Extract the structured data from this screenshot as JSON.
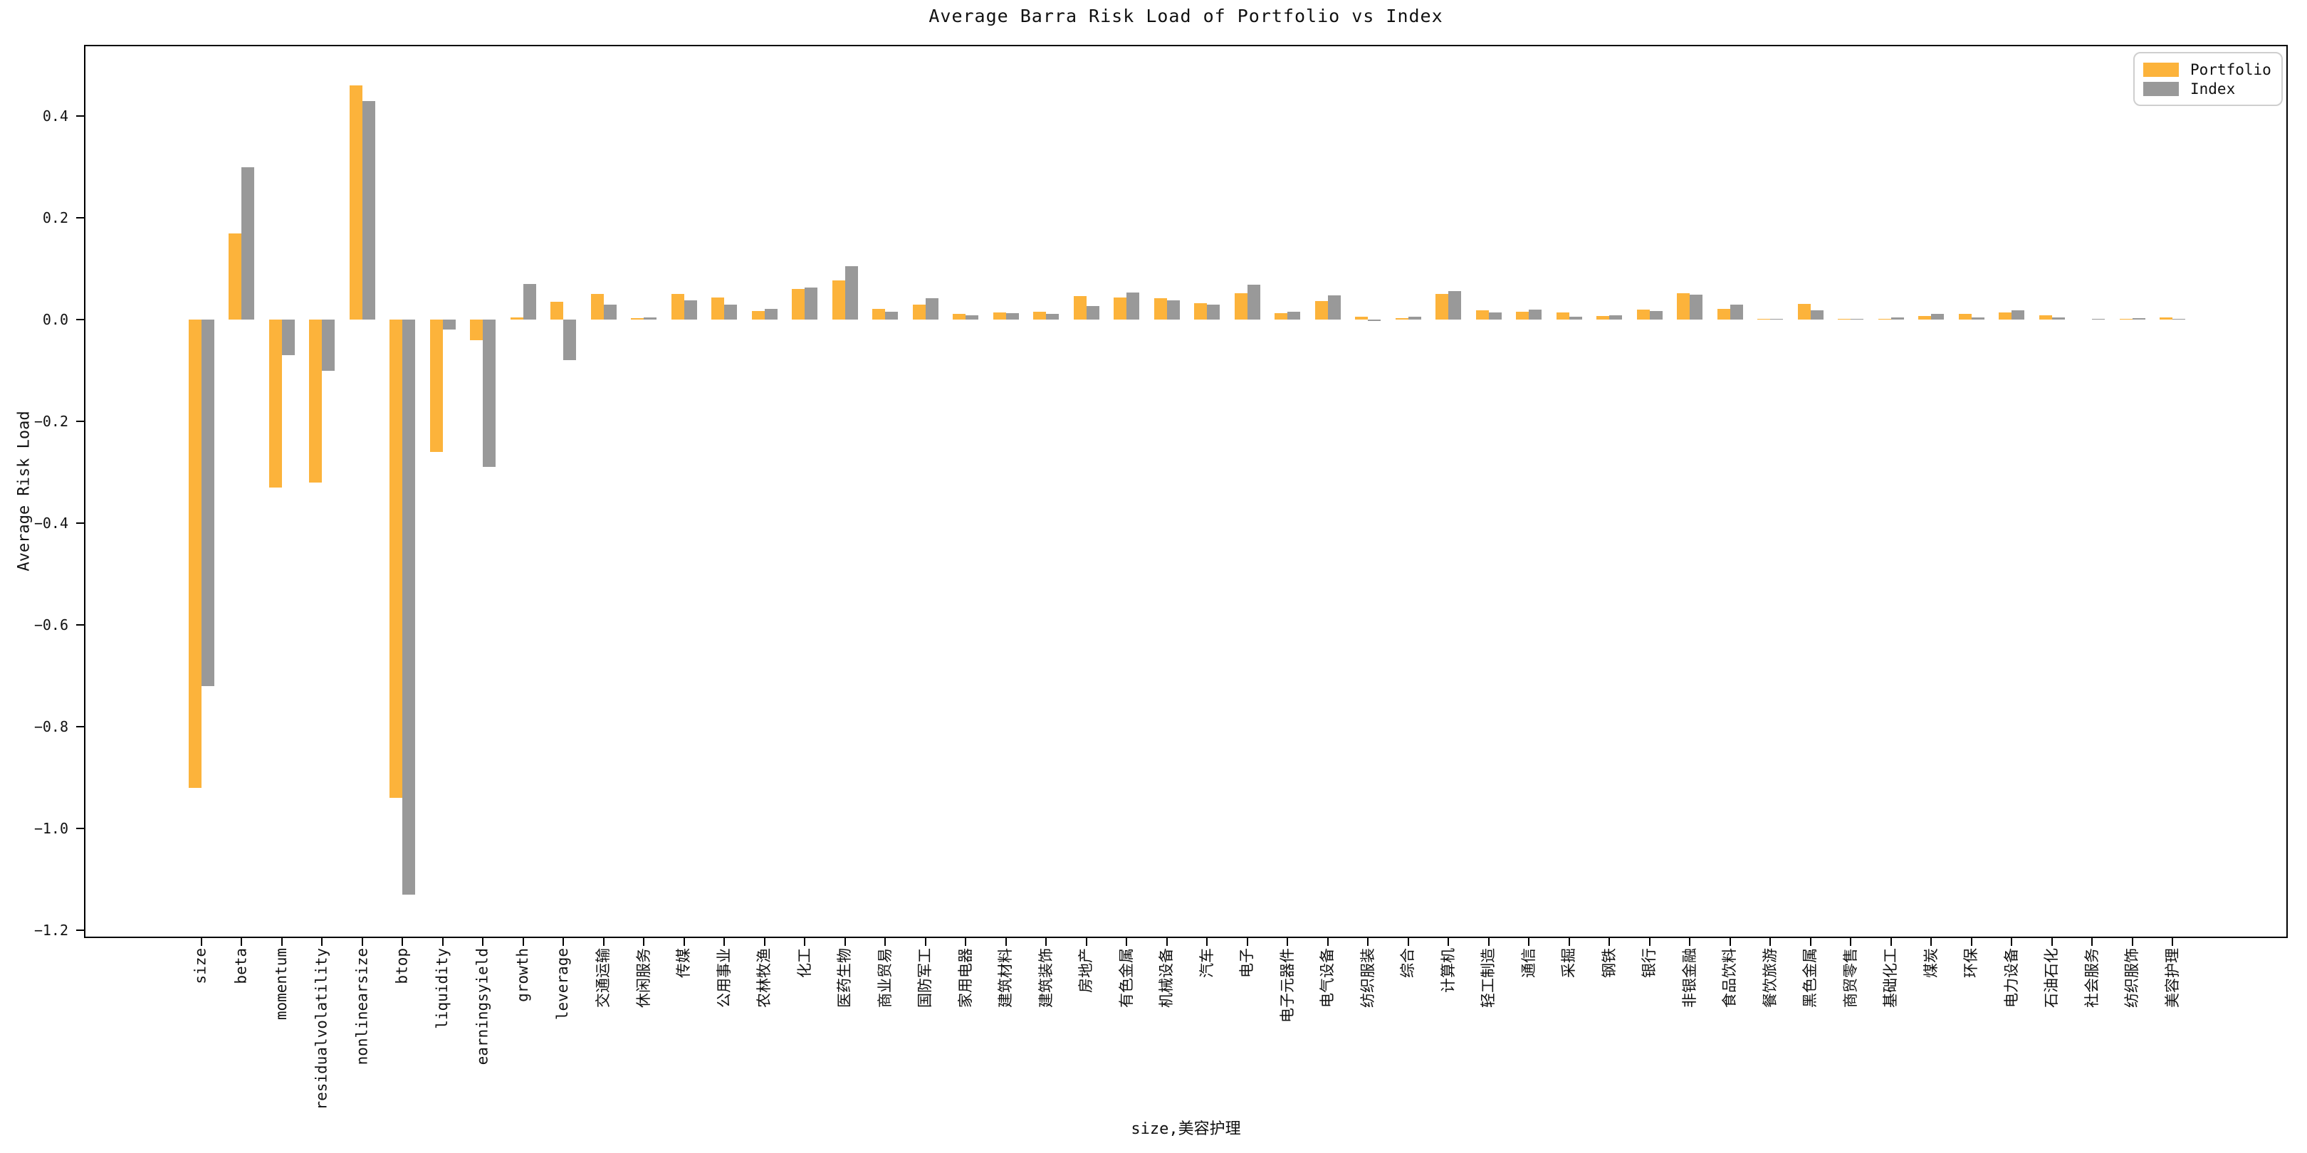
{
  "title": "Average Barra Risk Load of Portfolio vs Index",
  "ylabel": "Average Risk Load",
  "xlabel": "size,美容护理",
  "legend": {
    "portfolio_label": "Portfolio",
    "index_label": "Index"
  },
  "colors": {
    "portfolio": "#FCB33B",
    "index": "#999999",
    "frame": "#000000"
  },
  "chart_data": {
    "type": "bar",
    "title": "Average Barra Risk Load of Portfolio vs Index",
    "xlabel": "size,美容护理",
    "ylabel": "Average Risk Load",
    "grid": false,
    "legend_position": "upper right",
    "ylim": [
      -1.215,
      0.54
    ],
    "y_tick_labels": [
      "0.4",
      "0.2",
      "0.0",
      "−0.2",
      "−0.4",
      "−0.6",
      "−0.8",
      "−1.0",
      "−1.2"
    ],
    "categories": [
      "size",
      "beta",
      "momentum",
      "residualvolatility",
      "nonlinearsize",
      "btop",
      "liquidity",
      "earningsyield",
      "growth",
      "leverage",
      "交通运输",
      "休闲服务",
      "传媒",
      "公用事业",
      "农林牧渔",
      "化工",
      "医药生物",
      "商业贸易",
      "国防军工",
      "家用电器",
      "建筑材料",
      "建筑装饰",
      "房地产",
      "有色金属",
      "机械设备",
      "汽车",
      "电子",
      "电子元器件",
      "电气设备",
      "纺织服装",
      "综合",
      "计算机",
      "轻工制造",
      "通信",
      "采掘",
      "钢铁",
      "银行",
      "非银金融",
      "食品饮料",
      "餐饮旅游",
      "黑色金属",
      "商贸零售",
      "基础化工",
      "煤炭",
      "环保",
      "电力设备",
      "石油石化",
      "社会服务",
      "纺织服饰",
      "美容护理"
    ],
    "series": [
      {
        "name": "Portfolio",
        "color": "#FCB33B",
        "values": [
          -0.92,
          0.17,
          -0.33,
          -0.32,
          0.46,
          -0.94,
          -0.26,
          -0.04,
          0.005,
          0.035,
          0.05,
          0.003,
          0.05,
          0.044,
          0.017,
          0.06,
          0.077,
          0.021,
          0.03,
          0.011,
          0.014,
          0.016,
          0.046,
          0.044,
          0.042,
          0.032,
          0.052,
          0.013,
          0.036,
          0.006,
          0.003,
          0.051,
          0.018,
          0.015,
          0.014,
          0.007,
          0.02,
          0.052,
          0.021,
          0.002,
          0.031,
          0.002,
          0.001,
          0.007,
          0.011,
          0.014,
          0.008,
          0.0,
          0.001,
          0.004
        ]
      },
      {
        "name": "Index",
        "color": "#999999",
        "values": [
          -0.72,
          0.3,
          -0.07,
          -0.1,
          0.43,
          -1.13,
          -0.02,
          -0.29,
          0.07,
          -0.08,
          0.03,
          0.005,
          0.038,
          0.029,
          0.021,
          0.063,
          0.105,
          0.015,
          0.042,
          0.009,
          0.013,
          0.011,
          0.027,
          0.053,
          0.038,
          0.03,
          0.068,
          0.015,
          0.047,
          -0.003,
          0.006,
          0.056,
          0.014,
          0.02,
          0.006,
          0.008,
          0.017,
          0.049,
          0.029,
          0.001,
          0.019,
          0.001,
          0.004,
          0.011,
          0.004,
          0.018,
          0.005,
          0.002,
          0.003,
          0.002
        ]
      }
    ]
  }
}
